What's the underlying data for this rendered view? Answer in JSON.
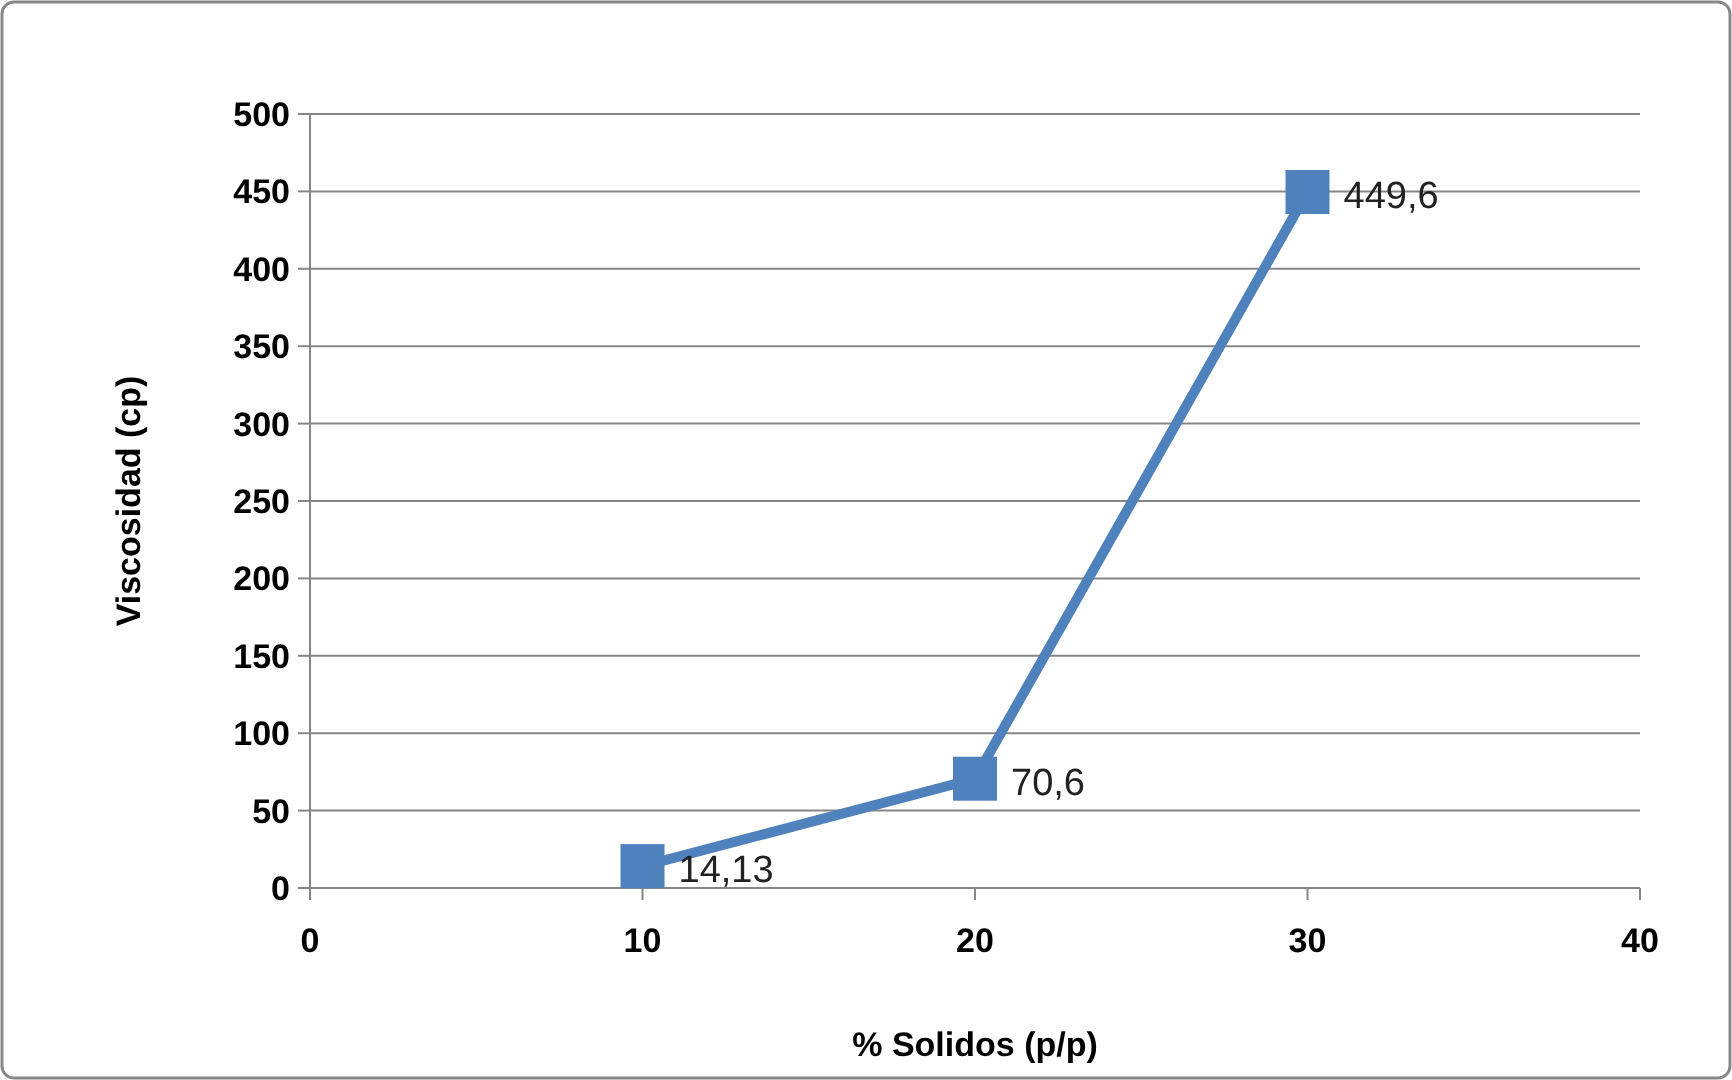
{
  "chart_data": {
    "type": "line",
    "xlabel": "% Solidos (p/p)",
    "ylabel": "Viscosidad (cp)",
    "x": [
      10,
      20,
      30
    ],
    "series": [
      {
        "color": "#4f81bd",
        "values": [
          14.13,
          70.6,
          449.6
        ],
        "value_labels": [
          "14,13",
          "70,6",
          "449,6"
        ]
      }
    ],
    "xlim": [
      0,
      40
    ],
    "xticks": [
      0,
      10,
      20,
      30,
      40
    ],
    "ylim": [
      0,
      500
    ],
    "yticks": [
      0,
      50,
      100,
      150,
      200,
      250,
      300,
      350,
      400,
      450,
      500
    ],
    "grid": "y",
    "marker": "square",
    "line_style": "solid"
  }
}
